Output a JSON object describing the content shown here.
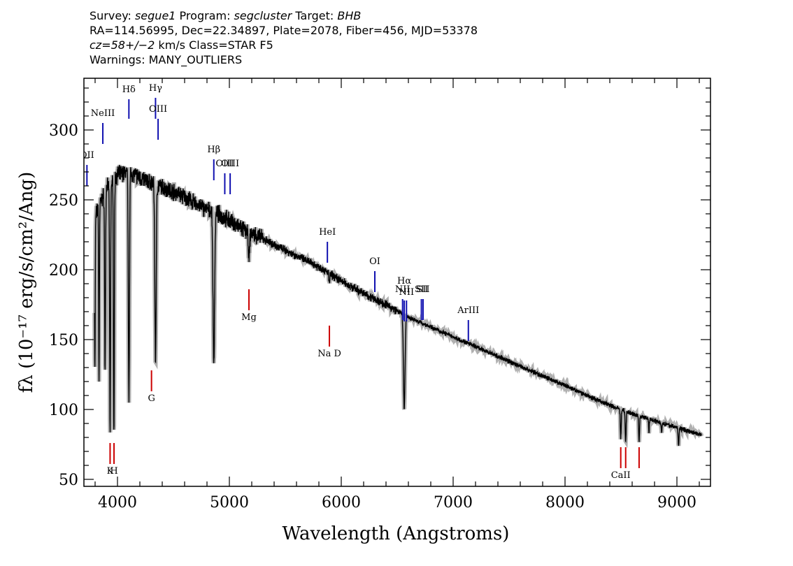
{
  "header": {
    "line1": [
      {
        "t": "Survey: "
      },
      {
        "t": "segue1",
        "i": true
      },
      {
        "t": " Program: "
      },
      {
        "t": "segcluster",
        "i": true
      },
      {
        "t": " Target: "
      },
      {
        "t": "BHB",
        "i": true
      }
    ],
    "line2": [
      {
        "t": "RA=114.56995, Dec=22.34897, Plate=2078, Fiber=456, MJD=53378"
      }
    ],
    "line3": [
      {
        "t": "cz=58+/−2",
        "i": true
      },
      {
        "t": " km/s Class=STAR F5"
      }
    ],
    "line4": [
      {
        "t": "Warnings: MANY_OUTLIERS"
      }
    ]
  },
  "chart_data": {
    "type": "line",
    "xlabel": "Wavelength (Angstroms)",
    "ylabel": "fλ (10⁻¹⁷ erg/s/cm²/Ang)",
    "xlim": [
      3700,
      9300
    ],
    "ylim": [
      45,
      337
    ],
    "x_ticks": [
      4000,
      5000,
      6000,
      7000,
      8000,
      9000
    ],
    "y_ticks": [
      50,
      100,
      150,
      200,
      250,
      300
    ],
    "grid": false,
    "colors": {
      "spectrum": "#000000",
      "error_band": "#b0b0b0",
      "emission": "#1010b0",
      "absorption": "#cc0000"
    },
    "continuum": [
      [
        3800,
        238
      ],
      [
        3900,
        258
      ],
      [
        4000,
        268
      ],
      [
        4100,
        270
      ],
      [
        4200,
        266
      ],
      [
        4300,
        262
      ],
      [
        4400,
        259
      ],
      [
        4500,
        256
      ],
      [
        4600,
        252
      ],
      [
        4700,
        247
      ],
      [
        4800,
        243
      ],
      [
        4900,
        240
      ],
      [
        5000,
        235
      ],
      [
        5100,
        230
      ],
      [
        5200,
        226
      ],
      [
        5400,
        218
      ],
      [
        5600,
        210
      ],
      [
        5800,
        202
      ],
      [
        6000,
        192
      ],
      [
        6200,
        183
      ],
      [
        6400,
        175
      ],
      [
        6600,
        166
      ],
      [
        6800,
        159
      ],
      [
        7000,
        152
      ],
      [
        7200,
        145
      ],
      [
        7400,
        138
      ],
      [
        7600,
        131
      ],
      [
        7800,
        124
      ],
      [
        8000,
        117
      ],
      [
        8200,
        110
      ],
      [
        8400,
        103
      ],
      [
        8600,
        97
      ],
      [
        8800,
        92
      ],
      [
        9000,
        87
      ],
      [
        9220,
        82
      ]
    ],
    "absorption_features": [
      [
        3798,
        128,
        3
      ],
      [
        3835,
        122,
        3
      ],
      [
        3889,
        130,
        4
      ],
      [
        3934,
        83,
        4
      ],
      [
        3968,
        82,
        4
      ],
      [
        4102,
        110,
        5
      ],
      [
        4340,
        136,
        6
      ],
      [
        4861,
        133,
        7
      ],
      [
        5175,
        208,
        6
      ],
      [
        5893,
        190,
        4
      ],
      [
        6563,
        100,
        7
      ],
      [
        8498,
        80,
        4
      ],
      [
        8542,
        76,
        4
      ],
      [
        8662,
        78,
        4
      ],
      [
        8750,
        84,
        3
      ],
      [
        8863,
        83,
        3
      ],
      [
        9015,
        74,
        4
      ]
    ],
    "emission_lines": [
      {
        "label": "OII",
        "x": 3727,
        "y1": 260,
        "y2": 275,
        "label_y": 280
      },
      {
        "label": "NeIII",
        "x": 3869,
        "y1": 290,
        "y2": 305,
        "label_y": 310
      },
      {
        "label": "Hδ",
        "x": 4102,
        "y1": 308,
        "y2": 322,
        "label_y": 327
      },
      {
        "label": "Hγ",
        "x": 4340,
        "y1": 308,
        "y2": 323,
        "label_y": 328
      },
      {
        "label": "OIII",
        "x": 4363,
        "y1": 293,
        "y2": 308,
        "label_y": 313
      },
      {
        "label": "Hβ",
        "x": 4861,
        "y1": 264,
        "y2": 279,
        "label_y": 284
      },
      {
        "label": "OIII",
        "x": 4959,
        "y1": 254,
        "y2": 269,
        "label_y": 274
      },
      {
        "label": "OIII",
        "x": 5007,
        "y1": 254,
        "y2": 269,
        "label_y": 274
      },
      {
        "label": "HeI",
        "x": 5876,
        "y1": 205,
        "y2": 220,
        "label_y": 225
      },
      {
        "label": "OI",
        "x": 6300,
        "y1": 184,
        "y2": 199,
        "label_y": 204
      },
      {
        "label": "NII",
        "x": 6548,
        "y1": 164,
        "y2": 179,
        "label_y": 184
      },
      {
        "label": "Hα",
        "x": 6563,
        "y1": 163,
        "y2": 178,
        "label_y": 190
      },
      {
        "label": "NII",
        "x": 6583,
        "y1": 163,
        "y2": 178,
        "label_y": 182
      },
      {
        "label": "SII",
        "x": 6716,
        "y1": 164,
        "y2": 179,
        "label_y": 184
      },
      {
        "label": "SII",
        "x": 6731,
        "y1": 164,
        "y2": 179,
        "label_y": 184
      },
      {
        "label": "ArIII",
        "x": 7136,
        "y1": 149,
        "y2": 164,
        "label_y": 169
      }
    ],
    "absorption_lines": [
      {
        "label": "K",
        "x": 3934,
        "y1": 61,
        "y2": 76,
        "label_y": 54
      },
      {
        "label": "H",
        "x": 3969,
        "y1": 61,
        "y2": 76,
        "label_y": 54
      },
      {
        "label": "G",
        "x": 4304,
        "y1": 113,
        "y2": 128,
        "label_y": 106
      },
      {
        "label": "Mg",
        "x": 5175,
        "y1": 171,
        "y2": 186,
        "label_y": 164
      },
      {
        "label": "Na D",
        "x": 5894,
        "y1": 145,
        "y2": 160,
        "label_y": 138
      },
      {
        "label": "CaII",
        "x": 8498,
        "y1": 58,
        "y2": 73,
        "label_y": 51
      },
      {
        "label": "",
        "x": 8542,
        "y1": 58,
        "y2": 73,
        "label_y": 51
      },
      {
        "label": "",
        "x": 8662,
        "y1": 58,
        "y2": 73,
        "label_y": 51
      }
    ]
  }
}
